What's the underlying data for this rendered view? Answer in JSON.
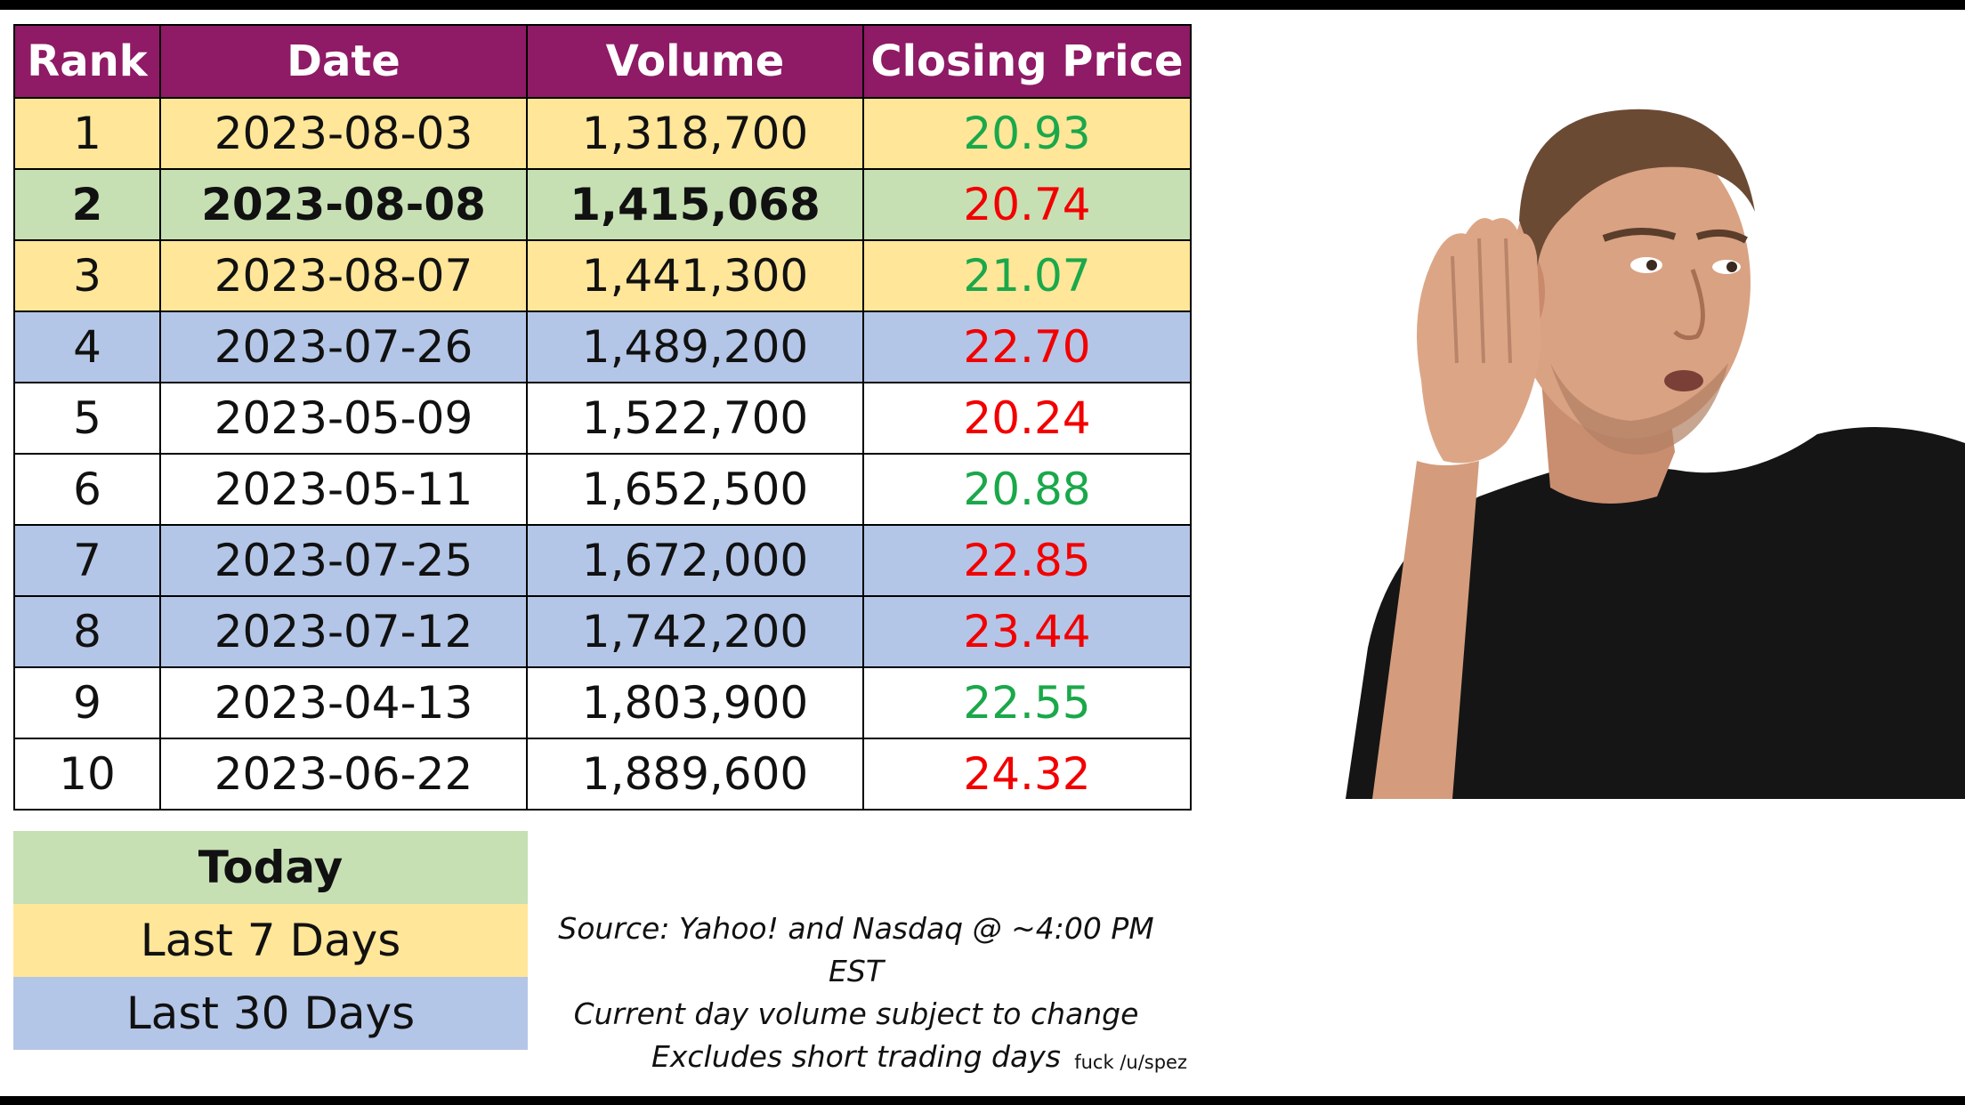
{
  "table": {
    "headers": [
      "Rank",
      "Date",
      "Volume",
      "Closing Price"
    ],
    "rows": [
      {
        "rank": "1",
        "date": "2023-08-03",
        "volume": "1,318,700",
        "close": "20.93",
        "direction": "up",
        "group": "week"
      },
      {
        "rank": "2",
        "date": "2023-08-08",
        "volume": "1,415,068",
        "close": "20.74",
        "direction": "down",
        "group": "today"
      },
      {
        "rank": "3",
        "date": "2023-08-07",
        "volume": "1,441,300",
        "close": "21.07",
        "direction": "up",
        "group": "week"
      },
      {
        "rank": "4",
        "date": "2023-07-26",
        "volume": "1,489,200",
        "close": "22.70",
        "direction": "down",
        "group": "month"
      },
      {
        "rank": "5",
        "date": "2023-05-09",
        "volume": "1,522,700",
        "close": "20.24",
        "direction": "down",
        "group": "plain"
      },
      {
        "rank": "6",
        "date": "2023-05-11",
        "volume": "1,652,500",
        "close": "20.88",
        "direction": "up",
        "group": "plain"
      },
      {
        "rank": "7",
        "date": "2023-07-25",
        "volume": "1,672,000",
        "close": "22.85",
        "direction": "down",
        "group": "month"
      },
      {
        "rank": "8",
        "date": "2023-07-12",
        "volume": "1,742,200",
        "close": "23.44",
        "direction": "down",
        "group": "month"
      },
      {
        "rank": "9",
        "date": "2023-04-13",
        "volume": "1,803,900",
        "close": "22.55",
        "direction": "up",
        "group": "plain"
      },
      {
        "rank": "10",
        "date": "2023-06-22",
        "volume": "1,889,600",
        "close": "24.32",
        "direction": "down",
        "group": "plain"
      }
    ]
  },
  "legend": {
    "today": "Today",
    "week": "Last 7 Days",
    "month": "Last 30 Days"
  },
  "notes": {
    "line1": "Source: Yahoo! and Nasdaq @ ~4:00 PM EST",
    "line2": "Current day volume subject to change",
    "line3": "Excludes short trading days"
  },
  "credit": "fuck /u/spez",
  "colors": {
    "header_bg": "#8f1a66",
    "today_bg": "#c6e0b4",
    "week_bg": "#ffe699",
    "month_bg": "#b4c6e7",
    "price_up": "#1aa84a",
    "price_down": "#f20000"
  },
  "image": {
    "subject": "man-cupping-ear-listening-photo"
  }
}
